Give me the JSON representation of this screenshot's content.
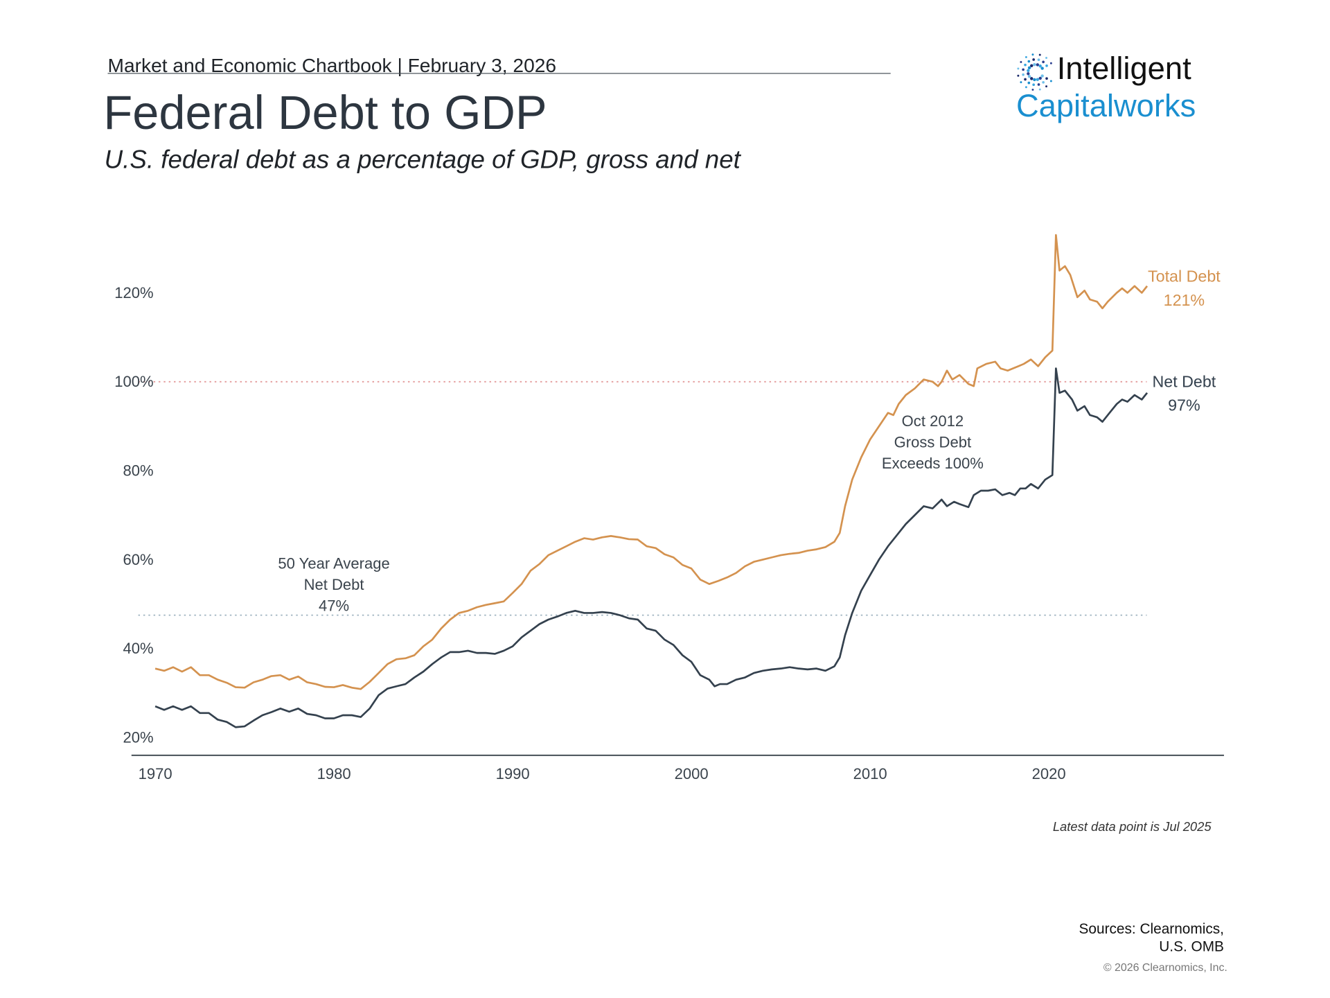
{
  "header": {
    "chartbook": "Market and Economic Chartbook | February 3, 2026",
    "title": "Federal Debt to GDP",
    "subtitle": "U.S. federal debt as a percentage of GDP, gross and net"
  },
  "logo": {
    "line1": "Intelligent",
    "line2": "Capitalworks",
    "icon": "radial-dots-icon",
    "color": "#1a8fd0"
  },
  "footer": {
    "latest": "Latest data point is Jul 2025",
    "sources_line1": "Sources: Clearnomics,",
    "sources_line2": "U.S. OMB",
    "copyright": "© 2026 Clearnomics, Inc."
  },
  "chart_data": {
    "type": "line",
    "title": "Federal Debt to GDP",
    "xlim": [
      1969,
      2030
    ],
    "ylim": [
      16,
      135
    ],
    "x_ticks": [
      1970,
      1980,
      1990,
      2000,
      2010,
      2020
    ],
    "x_tick_labels": [
      "1970",
      "1980",
      "1990",
      "2000",
      "2010",
      "2020"
    ],
    "y_ticks": [
      20,
      40,
      60,
      80,
      100,
      120
    ],
    "y_tick_labels": [
      "20%",
      "40%",
      "60%",
      "80%",
      "100%",
      "120%"
    ],
    "grid": false,
    "reference_lines": [
      {
        "y": 100,
        "color": "#e39a9a",
        "style": "dotted"
      },
      {
        "y": 47.5,
        "color": "#9db2bf",
        "style": "dotted"
      }
    ],
    "annotations": [
      {
        "lines": [
          "50 Year Average",
          "Net Debt",
          "47%"
        ],
        "x": 1980,
        "y": 58
      },
      {
        "lines": [
          "Oct 2012",
          "Gross Debt",
          "Exceeds 100%"
        ],
        "x": 2013.5,
        "y": 90
      }
    ],
    "series": [
      {
        "name": "Total Debt",
        "end_label": "121%",
        "color": "#d4924f",
        "x": [
          1970,
          1970.5,
          1971,
          1971.5,
          1972,
          1972.5,
          1973,
          1973.5,
          1974,
          1974.5,
          1975,
          1975.5,
          1976,
          1976.5,
          1977,
          1977.5,
          1978,
          1978.5,
          1979,
          1979.5,
          1980,
          1980.5,
          1981,
          1981.5,
          1982,
          1982.5,
          1983,
          1983.5,
          1984,
          1984.5,
          1985,
          1985.5,
          1986,
          1986.5,
          1987,
          1987.5,
          1988,
          1988.5,
          1989,
          1989.5,
          1990,
          1990.5,
          1991,
          1991.5,
          1992,
          1992.5,
          1993,
          1993.5,
          1994,
          1994.5,
          1995,
          1995.5,
          1996,
          1996.5,
          1997,
          1997.5,
          1998,
          1998.5,
          1999,
          1999.5,
          2000,
          2000.5,
          2001,
          2001.5,
          2002,
          2002.5,
          2003,
          2003.5,
          2004,
          2004.5,
          2005,
          2005.5,
          2006,
          2006.5,
          2007,
          2007.5,
          2008,
          2008.3,
          2008.6,
          2009,
          2009.5,
          2010,
          2010.5,
          2011,
          2011.3,
          2011.6,
          2012,
          2012.5,
          2013,
          2013.5,
          2013.8,
          2014,
          2014.3,
          2014.6,
          2015,
          2015.5,
          2015.8,
          2016,
          2016.5,
          2017,
          2017.3,
          2017.7,
          2018,
          2018.3,
          2018.6,
          2019,
          2019.4,
          2019.8,
          2020.2,
          2020.4,
          2020.6,
          2020.9,
          2021.2,
          2021.6,
          2022,
          2022.3,
          2022.7,
          2023,
          2023.3,
          2023.8,
          2024.1,
          2024.4,
          2024.8,
          2025.2,
          2025.5
        ],
        "y": [
          35.5,
          35,
          35.8,
          34.8,
          35.8,
          34,
          34,
          33,
          32.3,
          31.3,
          31.2,
          32.4,
          33,
          33.8,
          34,
          33,
          33.7,
          32.4,
          32,
          31.4,
          31.3,
          31.8,
          31.2,
          30.9,
          32.5,
          34.5,
          36.5,
          37.6,
          37.8,
          38.5,
          40.5,
          42,
          44.5,
          46.5,
          48,
          48.5,
          49.3,
          49.8,
          50.2,
          50.6,
          52.5,
          54.5,
          57.5,
          59,
          61,
          62,
          63,
          64,
          64.8,
          64.5,
          65,
          65.3,
          65,
          64.6,
          64.5,
          63,
          62.6,
          61.2,
          60.5,
          58.8,
          58,
          55.5,
          54.5,
          55.2,
          56,
          57,
          58.5,
          59.5,
          60,
          60.5,
          61,
          61.3,
          61.5,
          62,
          62.3,
          62.8,
          64,
          66,
          72,
          78,
          83,
          87,
          90,
          93,
          92.5,
          95,
          97,
          98.5,
          100.5,
          100,
          99,
          100,
          102.5,
          100.5,
          101.5,
          99.5,
          99,
          103,
          104,
          104.5,
          103,
          102.5,
          103,
          103.5,
          104,
          105,
          103.5,
          105.5,
          107,
          133,
          125,
          126,
          124,
          119,
          120.5,
          118.5,
          118,
          116.5,
          118,
          120,
          121,
          120,
          121.5,
          120,
          121.5
        ]
      },
      {
        "name": "Net Debt",
        "end_label": "97%",
        "color": "#34414e",
        "x": [
          1970,
          1970.5,
          1971,
          1971.5,
          1972,
          1972.5,
          1973,
          1973.5,
          1974,
          1974.5,
          1975,
          1975.5,
          1976,
          1976.5,
          1977,
          1977.5,
          1978,
          1978.5,
          1979,
          1979.5,
          1980,
          1980.5,
          1981,
          1981.5,
          1982,
          1982.5,
          1983,
          1983.5,
          1984,
          1984.5,
          1985,
          1985.5,
          1986,
          1986.5,
          1987,
          1987.5,
          1988,
          1988.5,
          1989,
          1989.5,
          1990,
          1990.5,
          1991,
          1991.5,
          1992,
          1992.5,
          1993,
          1993.5,
          1994,
          1994.5,
          1995,
          1995.5,
          1996,
          1996.5,
          1997,
          1997.5,
          1998,
          1998.5,
          1999,
          1999.5,
          2000,
          2000.5,
          2001,
          2001.3,
          2001.6,
          2002,
          2002.5,
          2003,
          2003.5,
          2004,
          2004.5,
          2005,
          2005.5,
          2006,
          2006.5,
          2007,
          2007.5,
          2008,
          2008.3,
          2008.6,
          2009,
          2009.5,
          2010,
          2010.5,
          2011,
          2011.5,
          2012,
          2012.5,
          2013,
          2013.5,
          2014,
          2014.3,
          2014.7,
          2015,
          2015.5,
          2015.8,
          2016.2,
          2016.6,
          2017,
          2017.4,
          2017.8,
          2018.1,
          2018.4,
          2018.7,
          2019,
          2019.4,
          2019.8,
          2020.2,
          2020.4,
          2020.6,
          2020.9,
          2021.3,
          2021.6,
          2022,
          2022.3,
          2022.7,
          2023,
          2023.4,
          2023.8,
          2024.1,
          2024.4,
          2024.8,
          2025.2,
          2025.5
        ],
        "y": [
          27,
          26.2,
          27,
          26.2,
          27,
          25.5,
          25.5,
          24,
          23.5,
          22.3,
          22.5,
          23.8,
          25,
          25.7,
          26.5,
          25.8,
          26.5,
          25.3,
          25,
          24.3,
          24.3,
          25,
          25,
          24.6,
          26.5,
          29.5,
          31,
          31.5,
          32,
          33.5,
          34.8,
          36.5,
          38,
          39.2,
          39.2,
          39.5,
          39,
          39,
          38.8,
          39.5,
          40.5,
          42.5,
          44,
          45.5,
          46.5,
          47.2,
          48,
          48.5,
          48,
          48,
          48.2,
          48,
          47.5,
          46.8,
          46.5,
          44.5,
          44,
          42,
          40.8,
          38.5,
          37,
          34,
          33,
          31.5,
          32,
          32,
          33,
          33.5,
          34.5,
          35,
          35.3,
          35.5,
          35.8,
          35.5,
          35.3,
          35.5,
          35,
          36,
          38,
          43,
          48,
          53,
          56.5,
          60,
          63,
          65.5,
          68,
          70,
          72,
          71.5,
          73.5,
          72,
          73,
          72.5,
          71.8,
          74.5,
          75.5,
          75.5,
          75.8,
          74.5,
          75,
          74.5,
          76,
          76,
          77,
          76,
          78,
          79,
          103,
          97.5,
          98,
          96,
          93.5,
          94.5,
          92.5,
          92,
          91,
          93,
          95,
          96,
          95.5,
          97,
          96,
          97.5
        ]
      }
    ]
  }
}
